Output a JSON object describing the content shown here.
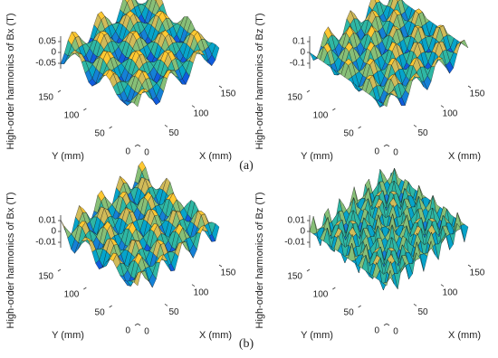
{
  "figure": {
    "panels": [
      {
        "zlabel": "High-order harmonics of Bx (T)",
        "xlabel": "X (mm)",
        "ylabel": "Y (mm)",
        "xticks": [
          0,
          50,
          100,
          150
        ],
        "yticks": [
          0,
          50,
          100,
          150
        ],
        "zticks": [
          -0.05,
          0,
          0.05
        ]
      },
      {
        "zlabel": "High-order harmonics of Bz (T)",
        "xlabel": "X (mm)",
        "ylabel": "Y (mm)",
        "xticks": [
          0,
          50,
          100,
          150
        ],
        "yticks": [
          0,
          50,
          100,
          150
        ],
        "zticks": [
          -0.1,
          0,
          0.1
        ]
      },
      {
        "zlabel": "High-order harmonics of Bx (T)",
        "xlabel": "X (mm)",
        "ylabel": "Y (mm)",
        "xticks": [
          0,
          50,
          100,
          150
        ],
        "yticks": [
          0,
          50,
          100,
          150
        ],
        "zticks": [
          -0.01,
          0,
          0.01
        ]
      },
      {
        "zlabel": "High-order harmonics of Bz (T)",
        "xlabel": "X (mm)",
        "ylabel": "Y (mm)",
        "xticks": [
          0,
          50,
          100,
          150
        ],
        "yticks": [
          0,
          50,
          100,
          150
        ],
        "zticks": [
          -0.01,
          0,
          0.01
        ]
      }
    ],
    "captions": [
      "(a)",
      "(b)"
    ]
  }
}
